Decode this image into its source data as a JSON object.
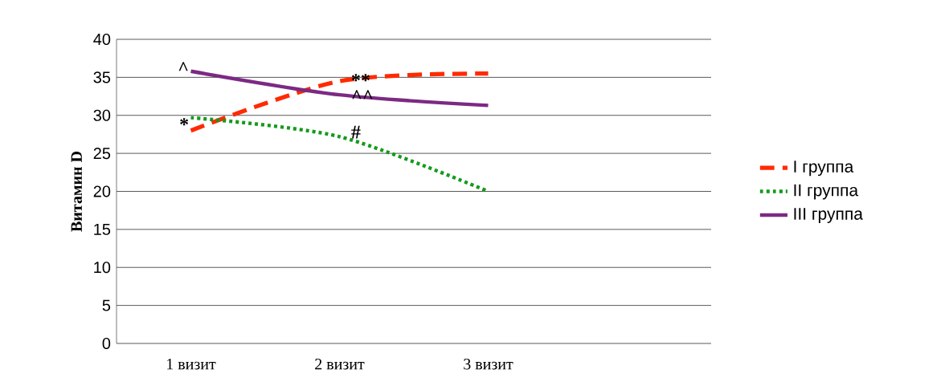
{
  "chart_data": {
    "type": "line",
    "ylabel": "Витамин D",
    "categories": [
      "1 визит",
      "2 визит",
      "3 визит",
      null
    ],
    "series": [
      {
        "name": "I группа",
        "color": "#ff2a00",
        "line_style": "dashed",
        "values": [
          28.0,
          34.5,
          35.5,
          null
        ]
      },
      {
        "name": "II группа",
        "color": "#149a1c",
        "line_style": "dotted",
        "values": [
          29.7,
          27.2,
          20.0,
          null
        ]
      },
      {
        "name": "III группа",
        "color": "#7b2a83",
        "line_style": "solid",
        "values": [
          35.8,
          32.7,
          31.3,
          null
        ]
      }
    ],
    "ylim": [
      0,
      40
    ],
    "yticks": [
      0,
      5,
      10,
      15,
      20,
      25,
      30,
      35,
      40
    ],
    "grid": "y",
    "legend": "right",
    "marker": "none",
    "annotations": [
      {
        "text": "*",
        "x": "1 визит",
        "y": 28.8
      },
      {
        "text": "^",
        "x": "1 визит",
        "y": 36.2
      },
      {
        "text": "**",
        "x": "2 визит",
        "y": 34.6
      },
      {
        "text": "^^",
        "x": "2 визит",
        "y": 32.5
      },
      {
        "text": "#",
        "x": "2 визит",
        "y": 27.8
      }
    ]
  }
}
